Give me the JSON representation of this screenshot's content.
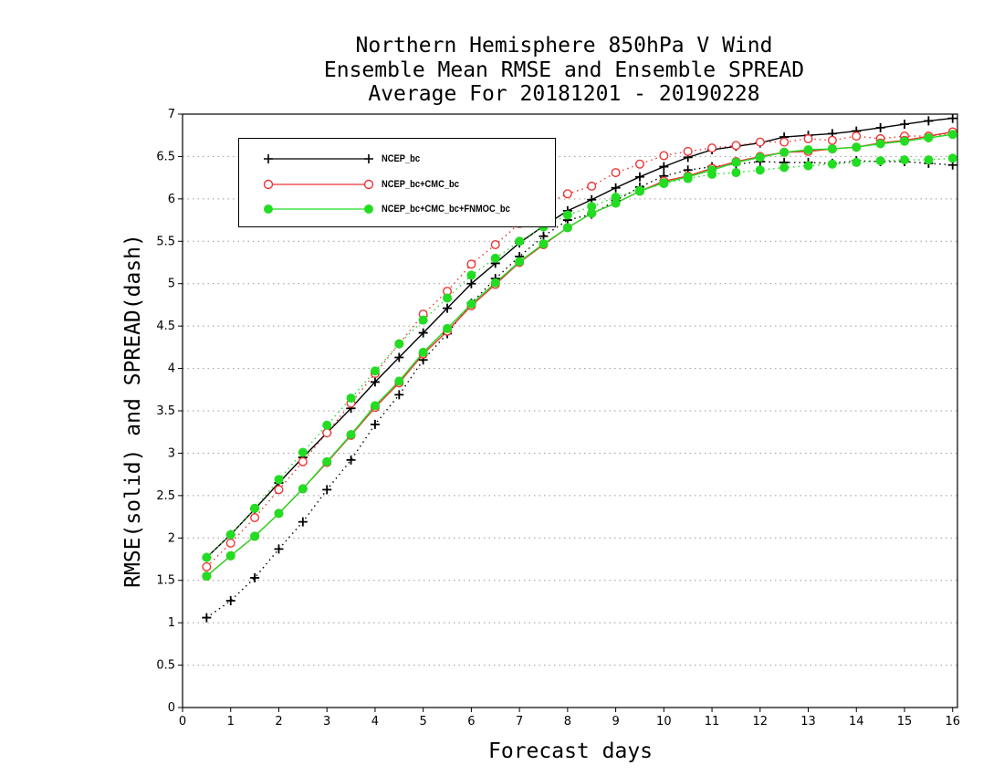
{
  "chart_data": {
    "type": "line",
    "title": [
      "Northern Hemisphere 850hPa V Wind",
      "Ensemble Mean RMSE and Ensemble SPREAD",
      "Average For 20181201 - 20190228"
    ],
    "xlabel": "Forecast days",
    "ylabel": "RMSE(solid) and SPREAD(dash)",
    "xlim": [
      0,
      16.1
    ],
    "ylim": [
      0,
      7
    ],
    "xticks": [
      "0",
      "1",
      "2",
      "3",
      "4",
      "5",
      "6",
      "7",
      "8",
      "9",
      "10",
      "11",
      "12",
      "13",
      "14",
      "15",
      "16"
    ],
    "yticks": [
      "0",
      "0.5",
      "1",
      "1.5",
      "2",
      "2.5",
      "3",
      "3.5",
      "4",
      "4.5",
      "5",
      "5.5",
      "6",
      "6.5",
      "7"
    ],
    "grid": "horizontal dotted",
    "legend_position": "top-left",
    "x": [
      0.5,
      1,
      1.5,
      2,
      2.5,
      3,
      3.5,
      4,
      4.5,
      5,
      5.5,
      6,
      6.5,
      7,
      7.5,
      8,
      8.5,
      9,
      9.5,
      10,
      10.5,
      11,
      11.5,
      12,
      12.5,
      13,
      13.5,
      14,
      14.5,
      15,
      15.5,
      16
    ],
    "series": [
      {
        "name": "NCEP_bc",
        "color": "#000000",
        "marker": "plus",
        "rmse": [
          1.77,
          2.04,
          2.34,
          2.65,
          2.95,
          3.24,
          3.53,
          3.84,
          4.13,
          4.42,
          4.71,
          5.0,
          5.24,
          5.48,
          5.68,
          5.86,
          5.99,
          6.13,
          6.26,
          6.38,
          6.49,
          6.58,
          6.62,
          6.66,
          6.73,
          6.75,
          6.77,
          6.8,
          6.84,
          6.88,
          6.92,
          6.95
        ],
        "spread": [
          1.06,
          1.26,
          1.53,
          1.87,
          2.19,
          2.57,
          2.92,
          3.34,
          3.69,
          4.1,
          4.41,
          4.77,
          5.06,
          5.32,
          5.56,
          5.75,
          5.82,
          5.98,
          6.14,
          6.27,
          6.34,
          6.38,
          6.41,
          6.44,
          6.43,
          6.43,
          6.42,
          6.45,
          6.44,
          6.44,
          6.42,
          6.4
        ]
      },
      {
        "name": "NCEP_bc+CMC_bc",
        "color": "#ee3333",
        "marker": "circle",
        "rmse": [
          1.55,
          1.79,
          2.02,
          2.29,
          2.58,
          2.89,
          3.21,
          3.54,
          3.83,
          4.17,
          4.44,
          4.74,
          4.99,
          5.25,
          5.46,
          5.66,
          5.83,
          5.95,
          6.09,
          6.21,
          6.27,
          6.36,
          6.44,
          6.5,
          6.55,
          6.56,
          6.59,
          6.61,
          6.66,
          6.69,
          6.74,
          6.79
        ],
        "spread": [
          1.66,
          1.94,
          2.24,
          2.57,
          2.9,
          3.24,
          3.59,
          3.94,
          4.29,
          4.64,
          4.91,
          5.23,
          5.46,
          5.71,
          5.93,
          6.06,
          6.15,
          6.31,
          6.41,
          6.51,
          6.56,
          6.6,
          6.63,
          6.67,
          6.67,
          6.71,
          6.69,
          6.74,
          6.71,
          6.74,
          6.74,
          6.77
        ]
      },
      {
        "name": "NCEP_bc+CMC_bc+FNMOC_bc",
        "color": "#22dd22",
        "marker": "filled-circle",
        "rmse": [
          1.55,
          1.79,
          2.02,
          2.29,
          2.58,
          2.9,
          3.22,
          3.56,
          3.85,
          4.19,
          4.47,
          4.76,
          5.01,
          5.26,
          5.47,
          5.66,
          5.83,
          5.95,
          6.09,
          6.19,
          6.26,
          6.34,
          6.43,
          6.49,
          6.55,
          6.58,
          6.59,
          6.61,
          6.65,
          6.68,
          6.72,
          6.76
        ],
        "spread": [
          1.77,
          2.04,
          2.35,
          2.69,
          3.01,
          3.33,
          3.65,
          3.97,
          4.29,
          4.57,
          4.83,
          5.1,
          5.3,
          5.5,
          5.67,
          5.81,
          5.91,
          6.02,
          6.1,
          6.18,
          6.24,
          6.29,
          6.31,
          6.34,
          6.37,
          6.39,
          6.41,
          6.43,
          6.45,
          6.46,
          6.46,
          6.48
        ]
      }
    ]
  }
}
